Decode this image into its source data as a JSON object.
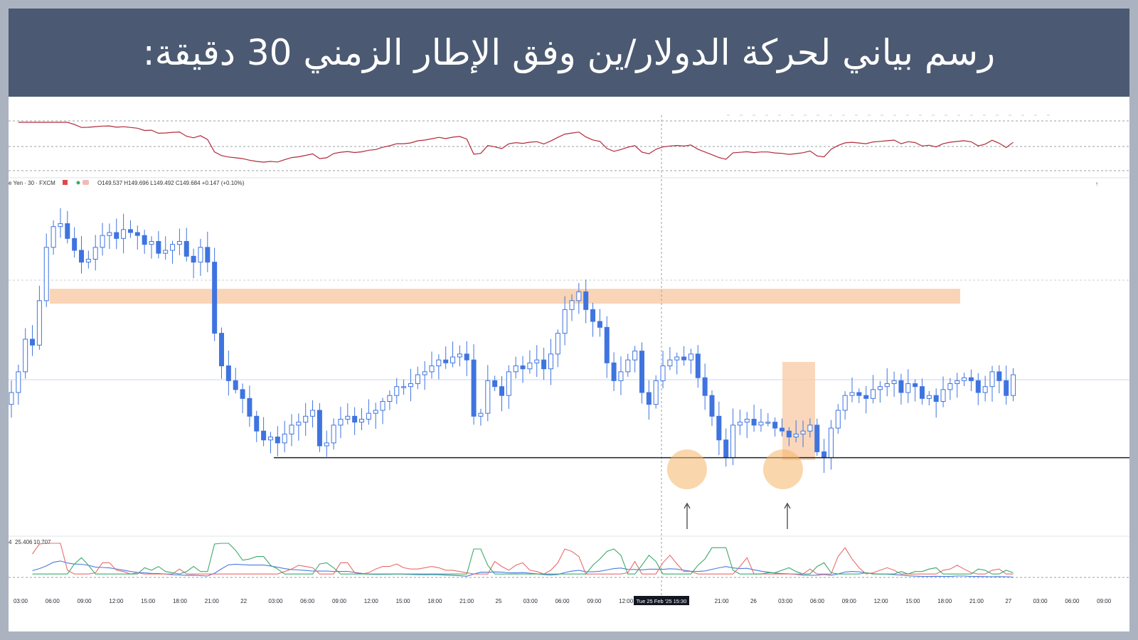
{
  "banner": {
    "title": "رسم بياني لحركة الدولار/ين وفق الإطار الزمني 30 دقيقة:"
  },
  "colors": {
    "banner_bg": "#4b5a72",
    "candle": "#3f74e0",
    "supply_zone": "#f8c9a4",
    "rsi_line": "#b22a3a",
    "adx": "#4a7be0",
    "plus_di": "#e76c6c",
    "minus_di": "#3daa6a"
  },
  "chart_data": {
    "type": "candlestick",
    "symbol_label": "e Yen · 30 · FXCM",
    "ohlc_label": "O149.537 H149.696 L149.492 C149.684 +0.147 (+0.10%)",
    "indicator_label_a": "4",
    "indicator_label_b": "25.406",
    "indicator_label_c": "10.707",
    "crosshair_label": "Tue 25 Feb '25   15:30",
    "x_ticks": [
      "03:00",
      "06:00",
      "09:00",
      "12:00",
      "15:00",
      "18:00",
      "21:00",
      "22",
      "03:00",
      "06:00",
      "09:00",
      "12:00",
      "15:00",
      "18:00",
      "21:00",
      "25",
      "03:00",
      "06:00",
      "09:00",
      "12:00",
      "",
      "",
      "21:00",
      "26",
      "03:00",
      "06:00",
      "09:00",
      "12:00",
      "15:00",
      "18:00",
      "21:00",
      "27",
      "03:00",
      "06:00",
      "09:00"
    ],
    "closes": [
      155.4,
      155.75,
      156.3,
      156.2,
      156.95,
      157.85,
      158.2,
      158.25,
      158.0,
      157.8,
      157.6,
      157.65,
      157.85,
      158.05,
      158.1,
      158.0,
      158.15,
      158.1,
      158.05,
      157.9,
      157.95,
      157.75,
      157.8,
      157.9,
      157.95,
      157.7,
      157.6,
      157.85,
      157.6,
      156.4,
      155.85,
      155.6,
      155.45,
      155.3,
      155.0,
      154.75,
      154.6,
      154.65,
      154.55,
      154.7,
      154.85,
      154.9,
      155.0,
      155.1,
      154.5,
      154.55,
      154.85,
      154.95,
      155.0,
      154.9,
      154.95,
      155.05,
      155.1,
      155.25,
      155.35,
      155.5,
      155.5,
      155.55,
      155.7,
      155.75,
      155.85,
      155.95,
      155.9,
      156.0,
      156.05,
      155.95,
      155.0,
      155.05,
      155.6,
      155.5,
      155.35,
      155.75,
      155.85,
      155.8,
      155.9,
      155.95,
      155.8,
      156.05,
      156.4,
      156.8,
      156.95,
      157.1,
      156.8,
      156.6,
      156.5,
      155.9,
      155.6,
      155.75,
      155.95,
      156.1,
      155.4,
      155.2,
      155.6,
      155.85,
      155.95,
      156.0,
      155.95,
      156.05,
      155.65,
      155.35,
      155.0,
      154.6,
      154.3,
      154.85,
      154.9,
      154.95,
      154.85,
      154.9,
      154.9,
      154.8,
      154.75,
      154.65,
      154.7,
      154.75,
      154.85,
      154.4,
      154.3,
      154.8,
      155.1,
      155.35,
      155.4,
      155.35,
      155.3,
      155.45,
      155.5,
      155.55,
      155.6,
      155.4,
      155.55,
      155.5,
      155.3,
      155.35,
      155.25,
      155.45,
      155.55,
      155.6,
      155.65,
      155.6,
      155.4,
      155.5,
      155.75,
      155.6,
      155.35,
      155.7
    ]
  },
  "drawings": {
    "support_level": 154.3,
    "supply_zone_top": 157.15,
    "supply_zone_bottom": 156.9
  }
}
